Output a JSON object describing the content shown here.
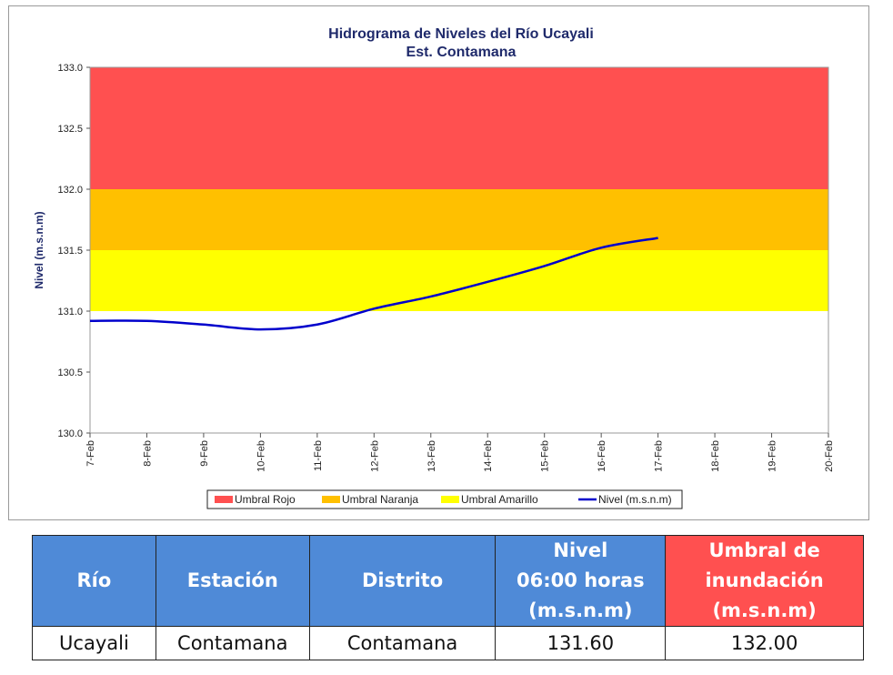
{
  "colors": {
    "rojo": "#ff5050",
    "naranja": "#ffc000",
    "amarillo": "#ffff00",
    "line": "#0000cc",
    "title": "#1f2a6b",
    "table_header_blue": "#4f8ad7",
    "table_header_red": "#ff5050"
  },
  "chart_data": {
    "type": "line",
    "title": "Hidrograma de Niveles del Río Ucayali",
    "subtitle": "Est. Contamana",
    "ylabel": "Nivel (m.s.n.m)",
    "xlabel": "",
    "ylim": [
      130.0,
      133.0
    ],
    "yticks": [
      "130.0",
      "130.5",
      "131.0",
      "131.5",
      "132.0",
      "132.5",
      "133.0"
    ],
    "categories": [
      "7-Feb",
      "8-Feb",
      "9-Feb",
      "10-Feb",
      "11-Feb",
      "12-Feb",
      "13-Feb",
      "14-Feb",
      "15-Feb",
      "16-Feb",
      "17-Feb",
      "18-Feb",
      "19-Feb",
      "20-Feb"
    ],
    "series": [
      {
        "name": "Nivel (m.s.n.m)",
        "values": [
          130.92,
          130.92,
          130.89,
          130.85,
          130.89,
          131.02,
          131.12,
          131.24,
          131.37,
          131.52,
          131.6,
          null,
          null,
          null
        ]
      }
    ],
    "bands": [
      {
        "name": "Umbral Rojo",
        "from": 132.0,
        "to": 133.0,
        "color": "#ff5050"
      },
      {
        "name": "Umbral Naranja",
        "from": 131.5,
        "to": 132.0,
        "color": "#ffc000"
      },
      {
        "name": "Umbral Amarillo",
        "from": 131.0,
        "to": 131.5,
        "color": "#ffff00"
      }
    ],
    "legend": {
      "placement": "bottom",
      "items": [
        "Umbral Rojo",
        "Umbral Naranja",
        "Umbral Amarillo",
        "Nivel (m.s.n.m)"
      ]
    },
    "grid": false
  },
  "table": {
    "headers": {
      "rio": "Río",
      "estacion": "Estación",
      "distrito": "Distrito",
      "nivel": [
        "Nivel",
        "06:00 horas",
        "(m.s.n.m)"
      ],
      "umbral": [
        "Umbral de",
        "inundación",
        "(m.s.n.m)"
      ]
    },
    "row": {
      "rio": "Ucayali",
      "estacion": "Contamana",
      "distrito": "Contamana",
      "nivel": "131.60",
      "umbral": "132.00"
    }
  }
}
